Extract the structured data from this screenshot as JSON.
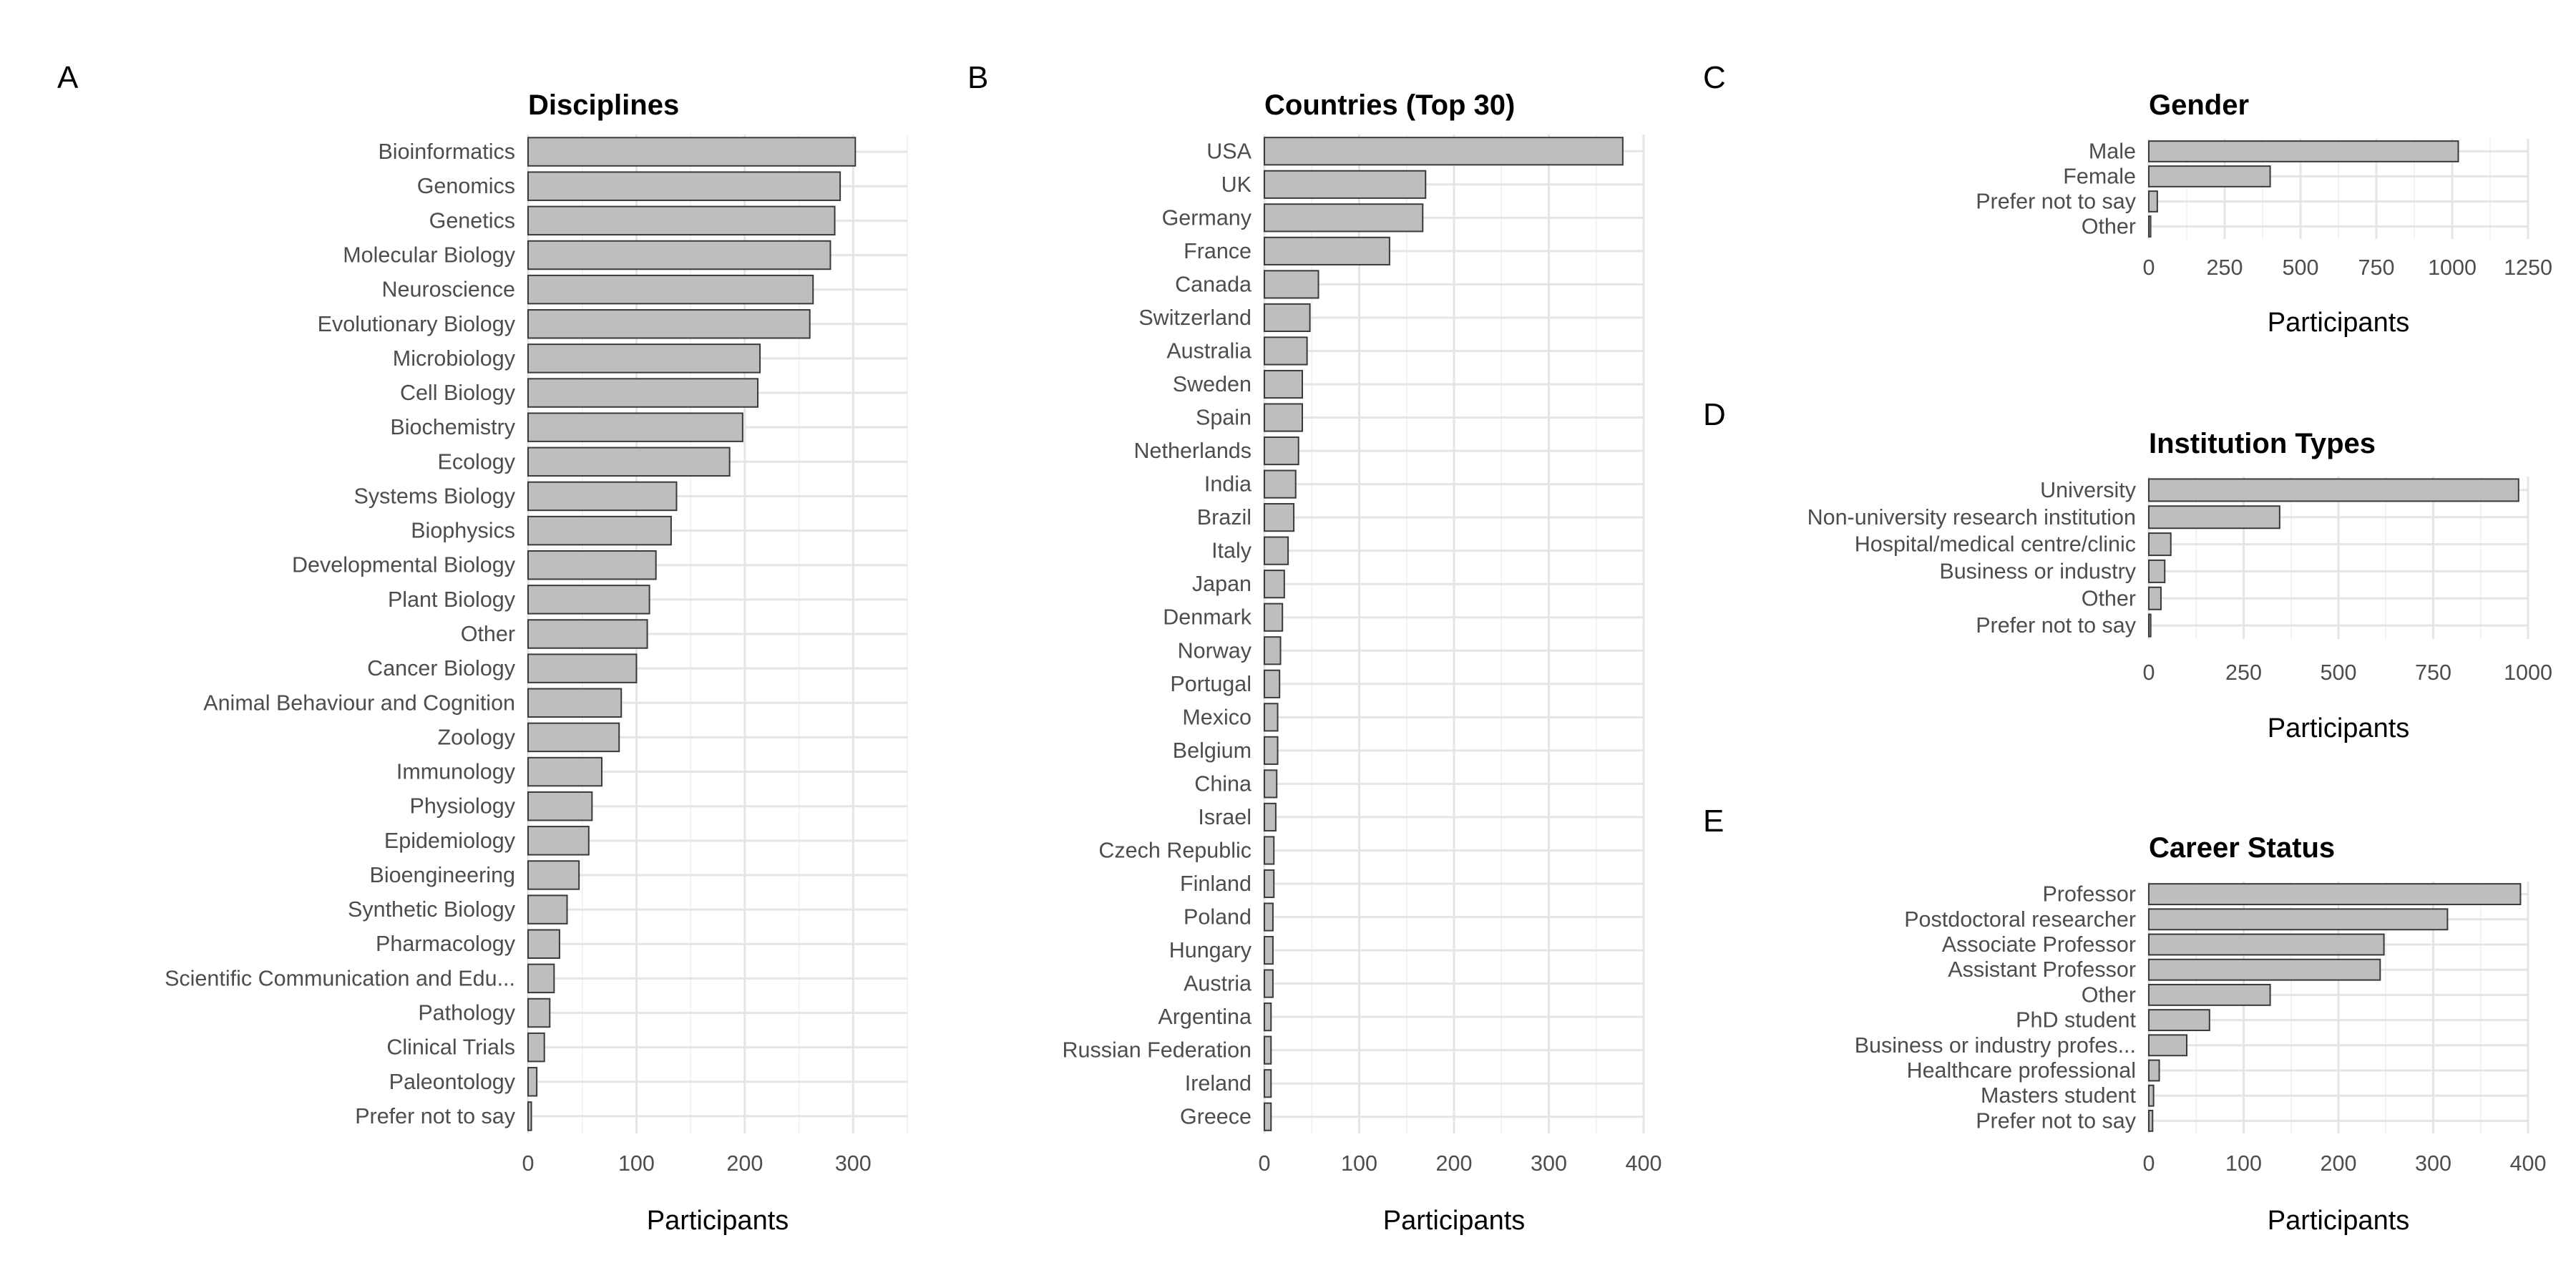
{
  "colors": {
    "bar_fill": "#bebebe",
    "bar_stroke": "#3a3a3a",
    "grid": "#e5e5e5",
    "label": "#4d4d4d"
  },
  "chart_data": [
    {
      "panel": "A",
      "type": "bar",
      "orientation": "horizontal",
      "title": "Disciplines",
      "xlabel": "Participants",
      "xlim": [
        0,
        350
      ],
      "ticks": [
        0,
        100,
        200,
        300
      ],
      "grid": true,
      "categories": [
        "Bioinformatics",
        "Genomics",
        "Genetics",
        "Molecular Biology",
        "Neuroscience",
        "Evolutionary Biology",
        "Microbiology",
        "Cell Biology",
        "Biochemistry",
        "Ecology",
        "Systems Biology",
        "Biophysics",
        "Developmental Biology",
        "Plant Biology",
        "Other",
        "Cancer Biology",
        "Animal Behaviour and Cognition",
        "Zoology",
        "Immunology",
        "Physiology",
        "Epidemiology",
        "Bioengineering",
        "Synthetic Biology",
        "Pharmacology",
        "Scientific Communication and Edu...",
        "Pathology",
        "Clinical Trials",
        "Paleontology",
        "Prefer not to say"
      ],
      "values": [
        302,
        288,
        283,
        279,
        263,
        260,
        214,
        212,
        198,
        186,
        137,
        132,
        118,
        112,
        110,
        100,
        86,
        84,
        68,
        59,
        56,
        47,
        36,
        29,
        24,
        20,
        15,
        8,
        3
      ]
    },
    {
      "panel": "B",
      "type": "bar",
      "orientation": "horizontal",
      "title": "Countries (Top 30)",
      "xlabel": "Participants",
      "xlim": [
        0,
        400
      ],
      "ticks": [
        0,
        100,
        200,
        300,
        400
      ],
      "grid": true,
      "categories": [
        "USA",
        "UK",
        "Germany",
        "France",
        "Canada",
        "Switzerland",
        "Australia",
        "Sweden",
        "Spain",
        "Netherlands",
        "India",
        "Brazil",
        "Italy",
        "Japan",
        "Denmark",
        "Norway",
        "Portugal",
        "Mexico",
        "Belgium",
        "China",
        "Israel",
        "Czech Republic",
        "Finland",
        "Poland",
        "Hungary",
        "Austria",
        "Argentina",
        "Russian Federation",
        "Ireland",
        "Greece"
      ],
      "values": [
        378,
        170,
        167,
        132,
        57,
        48,
        45,
        40,
        40,
        36,
        33,
        31,
        25,
        21,
        19,
        17,
        16,
        14,
        14,
        13,
        12,
        10,
        10,
        9,
        9,
        9,
        7,
        7,
        7,
        7
      ]
    },
    {
      "panel": "C",
      "type": "bar",
      "orientation": "horizontal",
      "title": "Gender",
      "xlabel": "Participants",
      "xlim": [
        0,
        1250
      ],
      "ticks": [
        0,
        250,
        500,
        750,
        1000,
        1250
      ],
      "grid": true,
      "categories": [
        "Male",
        "Female",
        "Prefer not to say",
        "Other"
      ],
      "values": [
        1020,
        400,
        28,
        6
      ]
    },
    {
      "panel": "D",
      "type": "bar",
      "orientation": "horizontal",
      "title": "Institution Types",
      "xlabel": "Participants",
      "xlim": [
        0,
        1000
      ],
      "ticks": [
        0,
        250,
        500,
        750,
        1000
      ],
      "grid": true,
      "categories": [
        "University",
        "Non-university research institution",
        "Hospital/medical centre/clinic",
        "Business or industry",
        "Other",
        "Prefer not to say"
      ],
      "values": [
        975,
        345,
        58,
        42,
        32,
        5
      ]
    },
    {
      "panel": "E",
      "type": "bar",
      "orientation": "horizontal",
      "title": "Career Status",
      "xlabel": "Participants",
      "xlim": [
        0,
        400
      ],
      "ticks": [
        0,
        100,
        200,
        300,
        400
      ],
      "grid": true,
      "categories": [
        "Professor",
        "Postdoctoral researcher",
        "Associate Professor",
        "Assistant Professor",
        "Other",
        "PhD student",
        "Business or industry profes...",
        "Healthcare professional",
        "Masters student",
        "Prefer not to say"
      ],
      "values": [
        392,
        315,
        248,
        244,
        128,
        64,
        40,
        11,
        5,
        4
      ]
    }
  ]
}
